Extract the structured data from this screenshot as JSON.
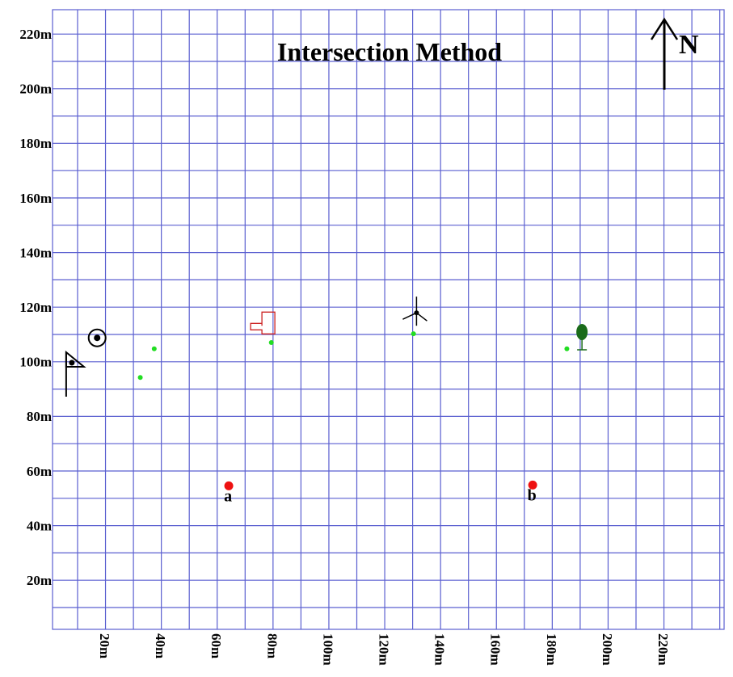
{
  "title": "Intersection Method",
  "north_label": "N",
  "axis_unit": "m",
  "y_ticks": [
    "20m",
    "40m",
    "60m",
    "80m",
    "100m",
    "120m",
    "140m",
    "160m",
    "180m",
    "200m",
    "220m"
  ],
  "x_ticks": [
    "20m",
    "40m",
    "60m",
    "80m",
    "100m",
    "120m",
    "140m",
    "160m",
    "180m",
    "200m",
    "220m"
  ],
  "chart_data": {
    "type": "scatter",
    "x_range_m": [
      0,
      240
    ],
    "y_range_m": [
      0,
      226
    ],
    "grid_spacing_m": 10,
    "stations": [
      {
        "label": "a",
        "x": 63.5,
        "y": 55.5,
        "color": "#ee1111"
      },
      {
        "label": "b",
        "x": 172.5,
        "y": 55.8,
        "color": "#ee1111"
      }
    ],
    "landmarks": [
      {
        "icon": "flag-icon",
        "x": 7.5,
        "y": 100
      },
      {
        "icon": "target-icon",
        "x": 16,
        "y": 110
      },
      {
        "icon": "building-icon",
        "x": 58,
        "y": 115
      },
      {
        "icon": "windmill-icon",
        "x": 112,
        "y": 124.5
      },
      {
        "icon": "tree-icon",
        "x": 172.5,
        "y": 114.5
      }
    ],
    "sighting_points": [
      {
        "x": 13.5,
        "y": 95.5
      },
      {
        "x": 18.5,
        "y": 106
      },
      {
        "x": 60.5,
        "y": 108.3
      },
      {
        "x": 111.5,
        "y": 111.5
      },
      {
        "x": 166.5,
        "y": 106
      }
    ],
    "colors": {
      "grid": "#5a5fd0",
      "station": "#ee1111",
      "sighting": "#22dd22",
      "building": "#cc2222",
      "tree": "#1a6b1a"
    }
  }
}
